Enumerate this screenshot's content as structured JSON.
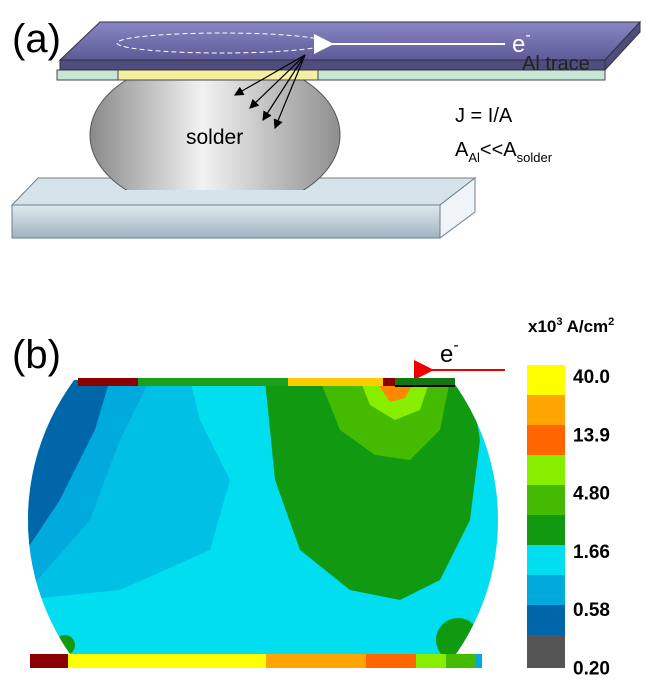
{
  "panel_a": {
    "label": "(a)",
    "electron": "e",
    "electron_charge": "-",
    "trace_label": "Al trace",
    "solder_label": "solder",
    "equation": "J = I/A",
    "inequality": {
      "left": "A",
      "left_sub": "Al",
      "middle": "<<A",
      "right_sub": "solder"
    }
  },
  "panel_b": {
    "label": "(b)",
    "electron": "e",
    "electron_charge": "-",
    "colorbar": {
      "title": "x10",
      "title_exp": "3",
      "title_unit": " A/cm",
      "title_unit_exp": "2",
      "labels": [
        "40.0",
        "13.9",
        "4.80",
        "1.66",
        "0.58",
        "0.20"
      ]
    }
  }
}
